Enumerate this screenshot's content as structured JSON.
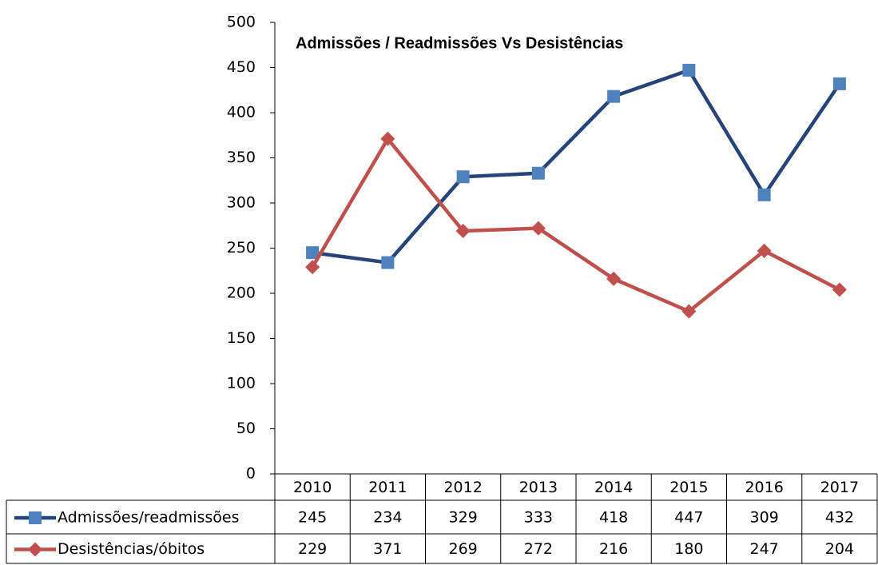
{
  "chart_data": {
    "type": "line",
    "title": "Admissões / Readmissões Vs Desistências",
    "categories": [
      "2010",
      "2011",
      "2012",
      "2013",
      "2014",
      "2015",
      "2016",
      "2017"
    ],
    "series": [
      {
        "name": "Admissões/readmissões",
        "color": "#264478",
        "marker_color": "#4f81bd",
        "marker": "square",
        "values": [
          245,
          234,
          329,
          333,
          418,
          447,
          309,
          432
        ]
      },
      {
        "name": "Desistências/óbitos",
        "color": "#c0504d",
        "marker_color": "#c0504d",
        "marker": "diamond",
        "values": [
          229,
          371,
          269,
          272,
          216,
          180,
          247,
          204
        ]
      }
    ],
    "ylim": [
      0,
      500
    ],
    "yticks": [
      0,
      50,
      100,
      150,
      200,
      250,
      300,
      350,
      400,
      450,
      500
    ],
    "grid": false,
    "data_table": true
  }
}
